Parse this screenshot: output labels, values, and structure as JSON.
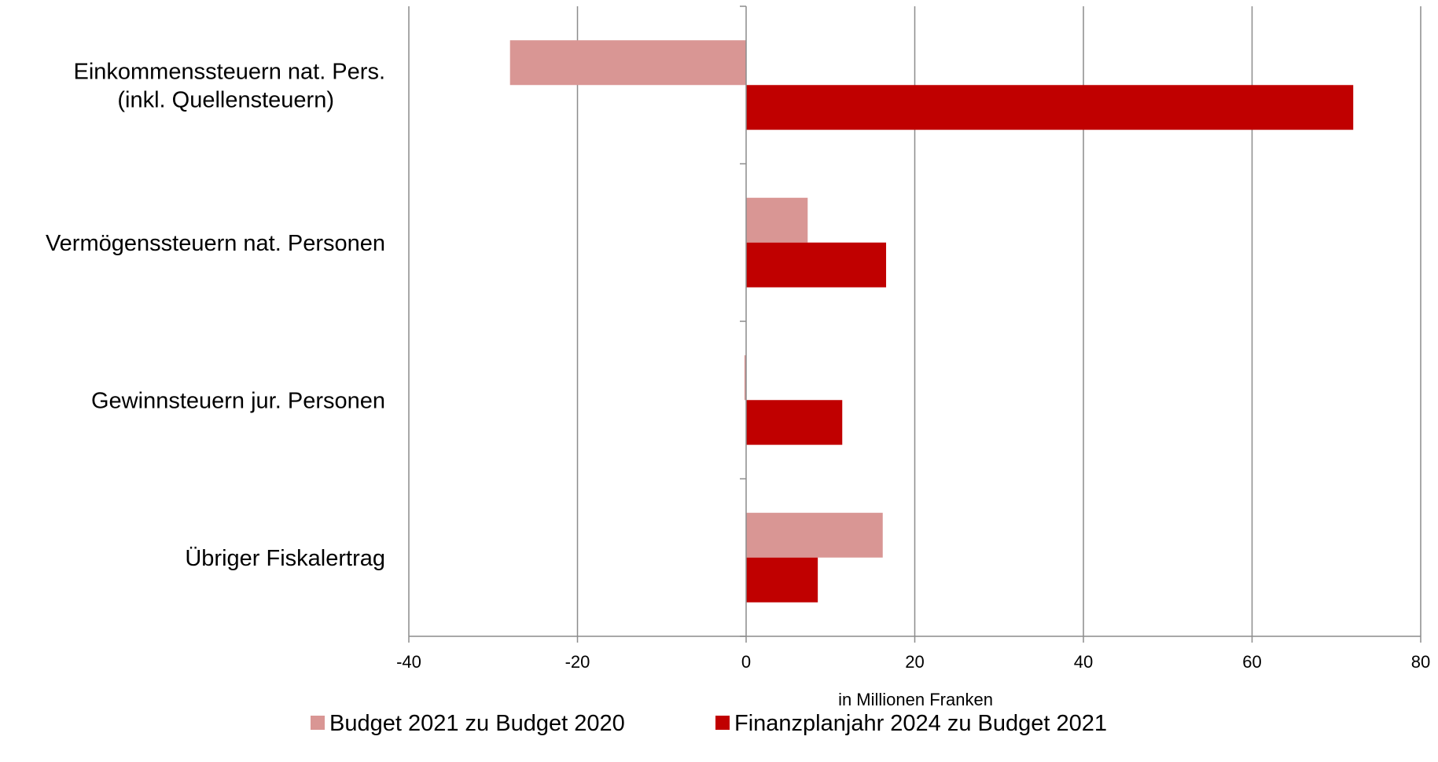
{
  "chart_data": {
    "type": "bar",
    "orientation": "horizontal",
    "categories": [
      [
        "Einkommenssteuern nat. Pers.",
        "(inkl. Quellensteuern)"
      ],
      [
        "Vermögenssteuern nat. Personen"
      ],
      [
        "Gewinnsteuern jur. Personen"
      ],
      [
        "Übriger Fiskalertrag"
      ]
    ],
    "series": [
      {
        "name": "Budget 2021 zu Budget 2020",
        "color": "#d99694",
        "values": [
          -28,
          7.3,
          -0.2,
          16.2
        ]
      },
      {
        "name": "Finanzplanjahr 2024 zu Budget 2021",
        "color": "#c00000",
        "values": [
          72,
          16.6,
          11.4,
          8.5
        ]
      }
    ],
    "xlim": [
      -40,
      80
    ],
    "xticks": [
      -40,
      -20,
      0,
      20,
      40,
      60,
      80
    ],
    "xlabel": "in Millionen Franken",
    "grid": "vertical",
    "legend_position": "bottom"
  }
}
